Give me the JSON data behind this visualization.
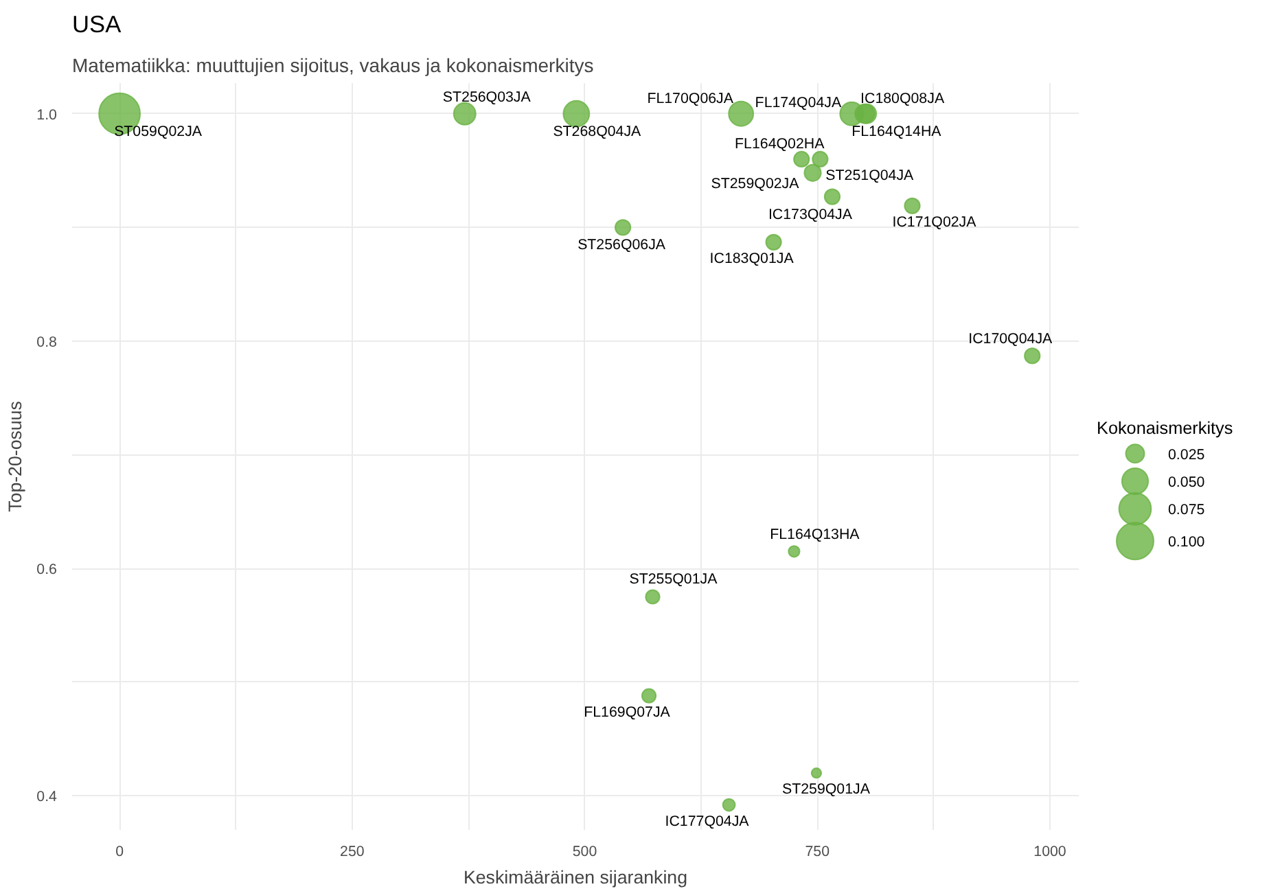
{
  "chart_data": {
    "type": "bubble",
    "title": "USA",
    "subtitle": "Matematiikka: muuttujien sijoitus, vakaus ja kokonaismerkitys",
    "xlabel": "Keskimääräinen sijaranking",
    "ylabel": "Top-20-osuus",
    "legend_title": "Kokonaismerkitys",
    "x": [
      0,
      371,
      491,
      541,
      668,
      787,
      803,
      801,
      733,
      753,
      745,
      766,
      852,
      703,
      981,
      725,
      573,
      569,
      749,
      655
    ],
    "series": [
      {
        "color": "#6ab344",
        "values": [
          1.0,
          1.0,
          1.0,
          0.9,
          1.0,
          1.0,
          1.0,
          1.0,
          0.96,
          0.96,
          0.948,
          0.927,
          0.919,
          0.887,
          0.787,
          0.615,
          0.575,
          0.488,
          0.42,
          0.392
        ],
        "sizes": [
          0.123,
          0.035,
          0.049,
          0.017,
          0.044,
          0.04,
          0.027,
          0.027,
          0.017,
          0.017,
          0.02,
          0.017,
          0.017,
          0.017,
          0.017,
          0.009,
          0.014,
          0.014,
          0.007,
          0.011
        ]
      }
    ],
    "size_legend": [
      {
        "value": 0.025,
        "label": "0.025"
      },
      {
        "value": 0.05,
        "label": "0.050"
      },
      {
        "value": 0.075,
        "label": "0.075"
      },
      {
        "value": 0.1,
        "label": "0.100"
      }
    ],
    "annotations": [
      {
        "text": "ST059Q02JA",
        "x": 0,
        "y": 1.0
      },
      {
        "text": "ST256Q03JA",
        "x": 371,
        "y": 1.0
      },
      {
        "text": "ST268Q04JA",
        "x": 491,
        "y": 1.0
      },
      {
        "text": "ST256Q06JA",
        "x": 541,
        "y": 0.9
      },
      {
        "text": "FL170Q06JA",
        "x": 668,
        "y": 1.0
      },
      {
        "text": "FL174Q04JA",
        "x": 787,
        "y": 1.0
      },
      {
        "text": "IC180Q08JA",
        "x": 803,
        "y": 1.0
      },
      {
        "text": "FL164Q14HA",
        "x": 801,
        "y": 1.0
      },
      {
        "text": "FL164Q02HA",
        "x": 733,
        "y": 0.96
      },
      {
        "text": "ST251Q04JA",
        "x": 753,
        "y": 0.96
      },
      {
        "text": "ST259Q02JA",
        "x": 745,
        "y": 0.948
      },
      {
        "text": "IC173Q04JA",
        "x": 766,
        "y": 0.927
      },
      {
        "text": "IC171Q02JA",
        "x": 852,
        "y": 0.919
      },
      {
        "text": "IC183Q01JA",
        "x": 703,
        "y": 0.887
      },
      {
        "text": "IC170Q04JA",
        "x": 981,
        "y": 0.787
      },
      {
        "text": "FL164Q13HA",
        "x": 725,
        "y": 0.615
      },
      {
        "text": "ST255Q01JA",
        "x": 573,
        "y": 0.575
      },
      {
        "text": "FL169Q07JA",
        "x": 569,
        "y": 0.488
      },
      {
        "text": "ST259Q01JA",
        "x": 749,
        "y": 0.42
      },
      {
        "text": "IC177Q04JA",
        "x": 655,
        "y": 0.392
      }
    ],
    "xlim": [
      -51,
      1031
    ],
    "ylim": [
      0.37,
      1.027
    ],
    "xticks": [
      0,
      {
        "value": 125,
        "label": null
      },
      250,
      {
        "value": 375,
        "label": null
      },
      500,
      {
        "value": 625,
        "label": null
      },
      750,
      {
        "value": 875,
        "label": null
      },
      1000
    ],
    "yticks": [
      0.4,
      {
        "value": 0.5,
        "label": null
      },
      0.6,
      {
        "value": 0.7,
        "label": null
      },
      0.8,
      {
        "value": 0.9,
        "label": null
      },
      {
        "value": 1.0,
        "label": "1.0"
      }
    ],
    "grid": true
  }
}
